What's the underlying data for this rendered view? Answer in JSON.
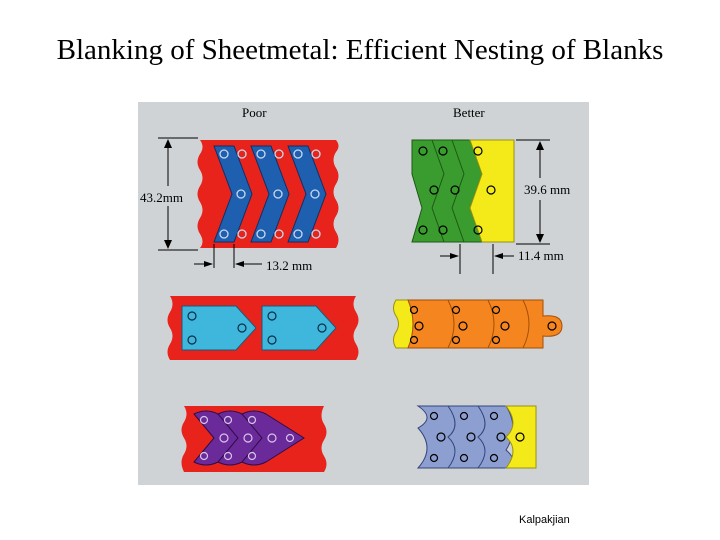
{
  "slide": {
    "title": "Blanking of Sheetmetal:  Efficient Nesting of Blanks",
    "credit": "Kalpakjian"
  },
  "figure": {
    "column_labels": {
      "poor": "Poor",
      "better": "Better"
    },
    "dimensions": {
      "poor_height": "43.2mm",
      "poor_pitch": "13.2 mm",
      "better_height": "39.6 mm",
      "better_pitch": "11.4 mm"
    },
    "colors": {
      "background": "#cfd3d6",
      "strip_red": "#e8231c",
      "blue": "#1e5fb0",
      "cyan": "#3fb6dc",
      "green": "#3a9c2e",
      "yellow": "#f4ea1a",
      "orange": "#f5861f",
      "purple": "#6a2a9a",
      "lavender": "#8c9fd0"
    }
  }
}
